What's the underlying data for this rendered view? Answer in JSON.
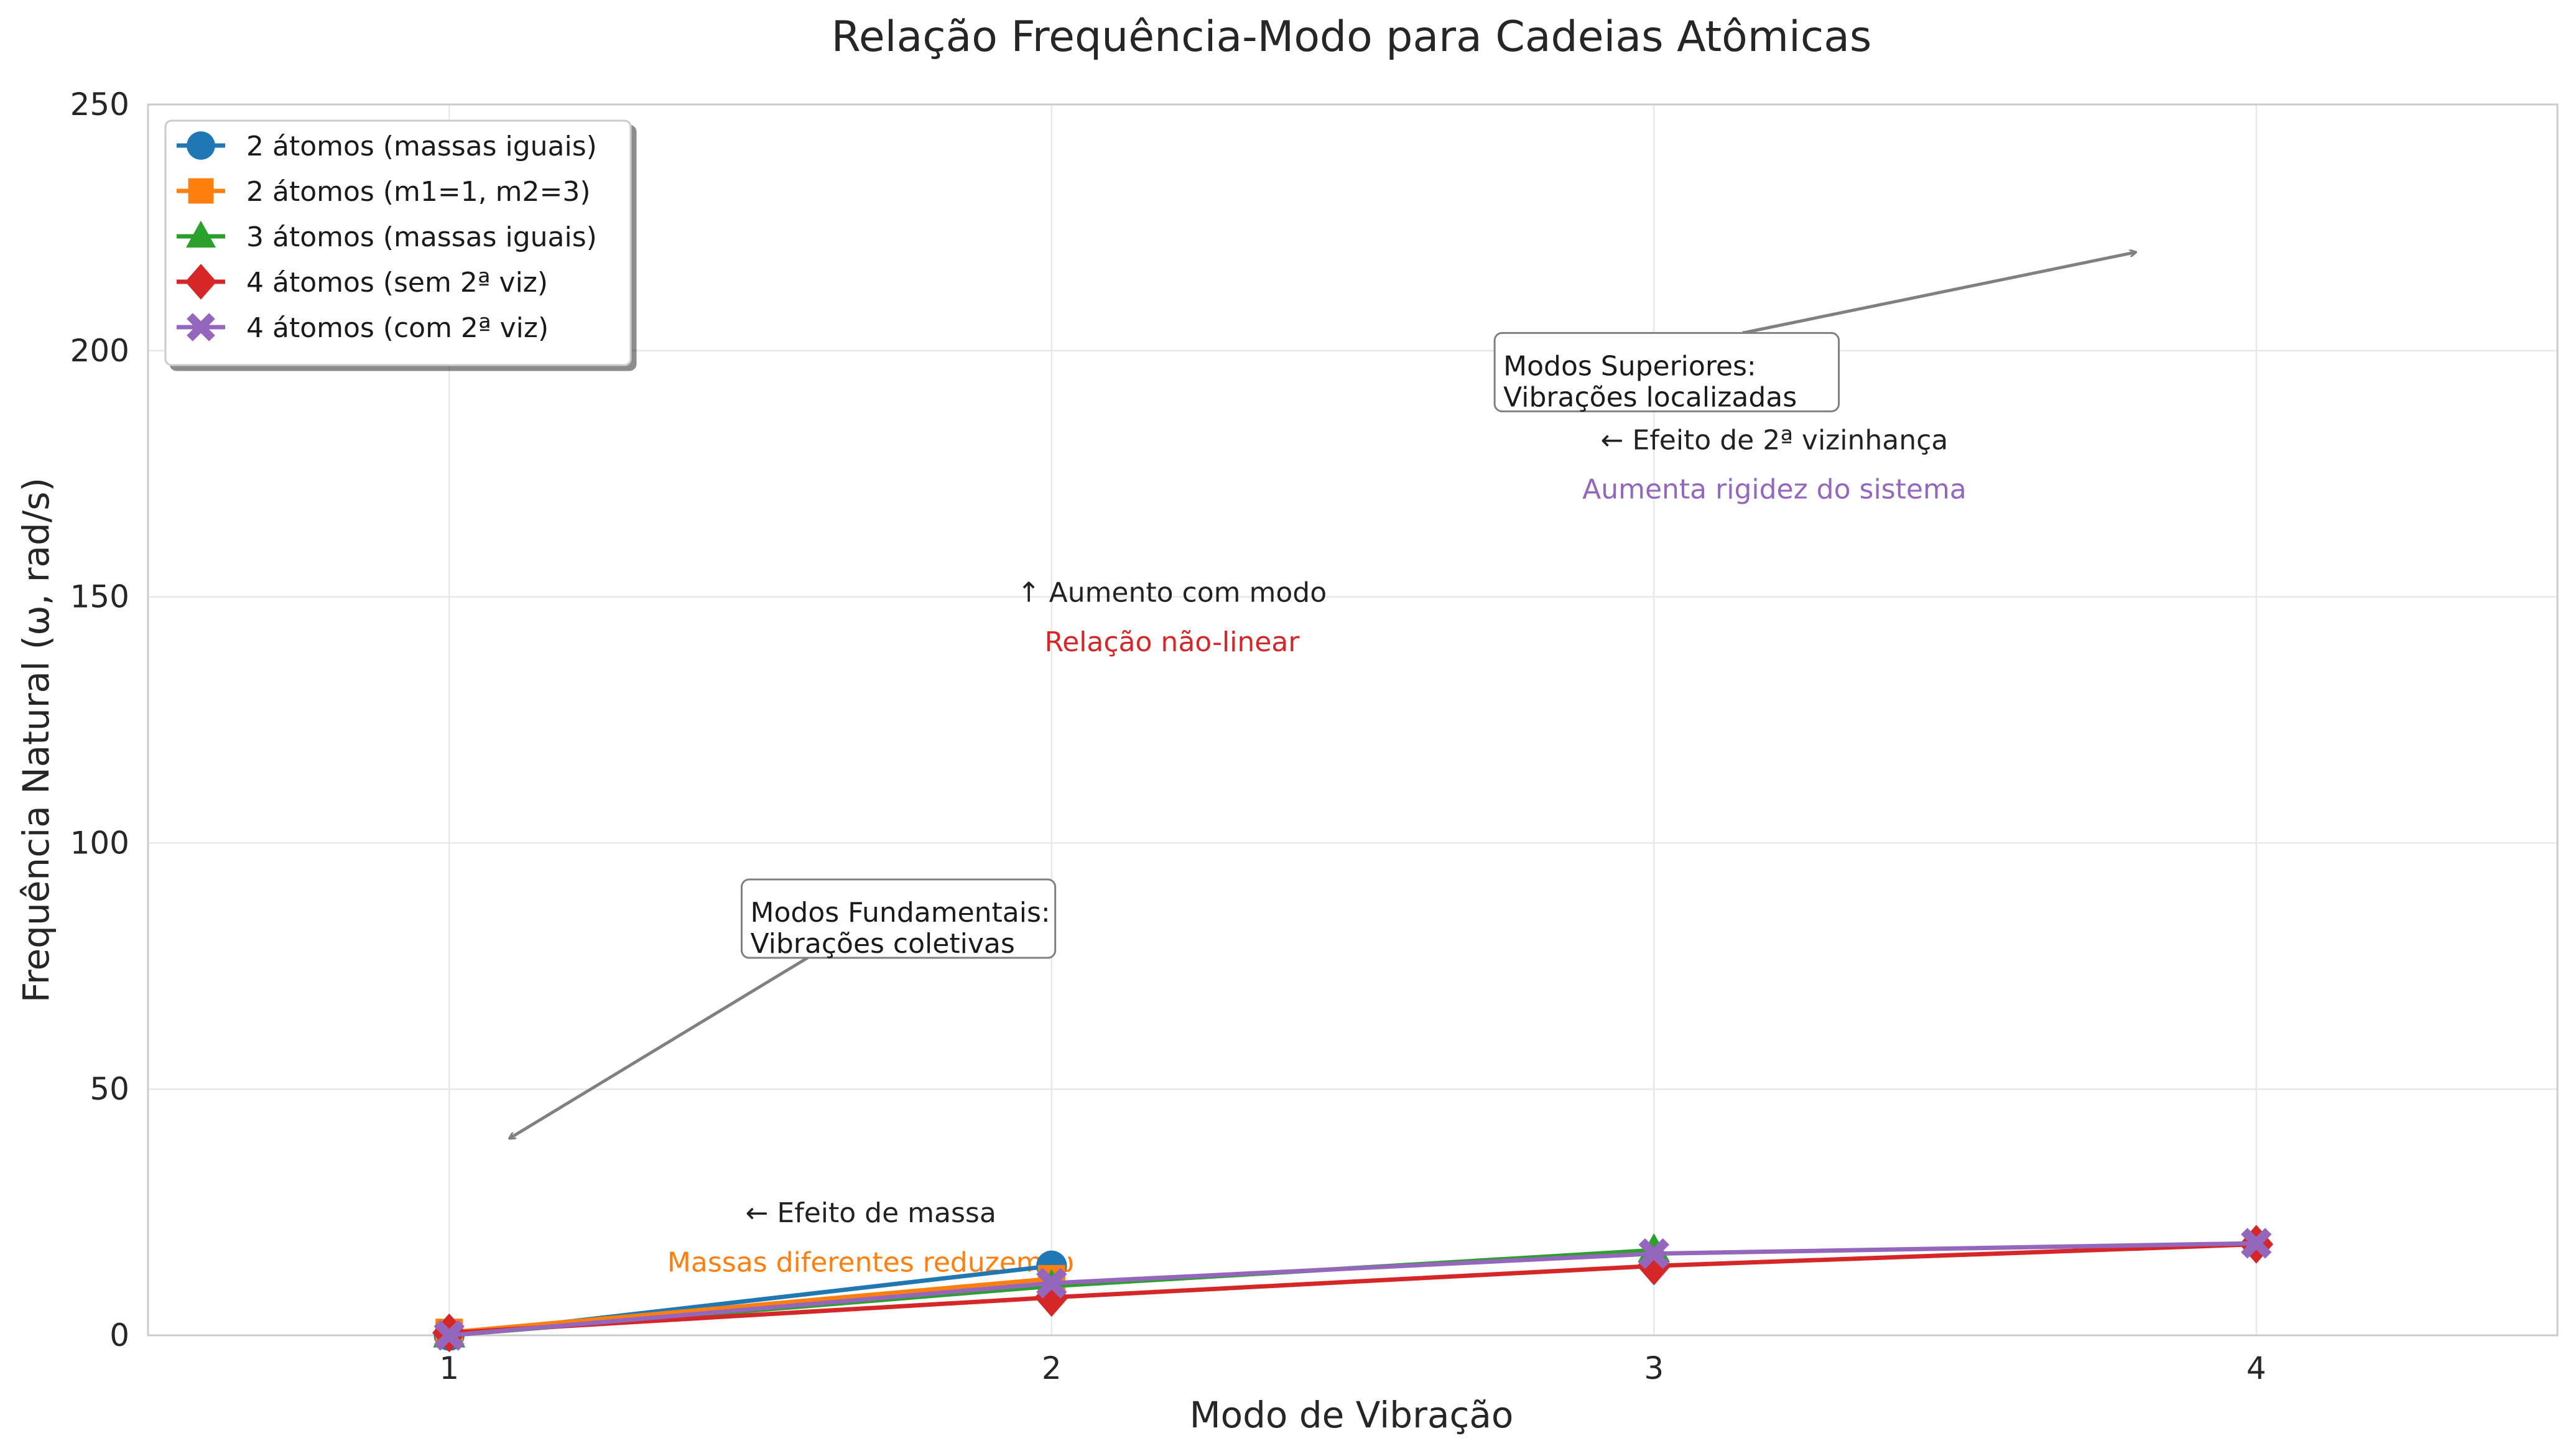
{
  "chart_data": {
    "type": "line",
    "title": "Relação Frequência-Modo para Cadeias Atômicas",
    "xlabel": "Modo de Vibração",
    "ylabel": "Frequência Natural (ω, rad/s)",
    "xlim": [
      0.5,
      4.5
    ],
    "ylim": [
      0,
      250
    ],
    "xticks": [
      1,
      2,
      3,
      4
    ],
    "xtick_labels": [
      "1",
      "2",
      "3",
      "4"
    ],
    "yticks": [
      0,
      50,
      100,
      150,
      200,
      250
    ],
    "ytick_labels": [
      "0",
      "50",
      "100",
      "150",
      "200",
      "250"
    ],
    "grid": true,
    "legend_position": "top-left",
    "series": [
      {
        "name": "2 átomos (massas iguais)",
        "color": "#1f77b4",
        "marker": "circle",
        "x": [
          1,
          2
        ],
        "y": [
          0,
          14.1
        ]
      },
      {
        "name": "2 átomos (m1=1, m2=3)",
        "color": "#ff7f0e",
        "marker": "square",
        "x": [
          1,
          2
        ],
        "y": [
          0.6,
          11.5
        ]
      },
      {
        "name": "3 átomos (massas iguais)",
        "color": "#2ca02c",
        "marker": "triangle",
        "x": [
          1,
          2,
          3
        ],
        "y": [
          0,
          10.0,
          17.3
        ]
      },
      {
        "name": "4 átomos (sem 2ª viz)",
        "color": "#d62728",
        "marker": "diamond",
        "x": [
          1,
          2,
          3,
          4
        ],
        "y": [
          0.5,
          7.7,
          14.1,
          18.5
        ]
      },
      {
        "name": "4 átomos (com 2ª viz)",
        "color": "#9467bd",
        "marker": "x",
        "x": [
          1,
          2,
          3,
          4
        ],
        "y": [
          0,
          10.6,
          16.6,
          18.7
        ]
      }
    ],
    "annotations": [
      {
        "id": "fundamental",
        "line1": "Modos Fundamentais:",
        "line2": "Vibrações coletivas",
        "boxed": true,
        "arrow_to": [
          1.1,
          40
        ],
        "text_at": [
          1.5,
          84
        ]
      },
      {
        "id": "superior",
        "line1": "Modos Superiores:",
        "line2": "Vibrações localizadas",
        "boxed": true,
        "arrow_to": [
          3.8,
          220
        ],
        "text_at": [
          2.75,
          195
        ]
      },
      {
        "id": "aumento",
        "label": "↑  Aumento com modo",
        "color": "#222222",
        "at": [
          2.2,
          151
        ]
      },
      {
        "id": "naolinear",
        "label": "Relação não-linear",
        "color": "#d62728",
        "at": [
          2.2,
          141
        ]
      },
      {
        "id": "massa",
        "label": "←  Efeito de massa",
        "color": "#222222",
        "at": [
          1.7,
          25
        ]
      },
      {
        "id": "massas",
        "label": "Massas diferentes reduzem ω",
        "color": "#ff7f0e",
        "at": [
          1.7,
          15
        ]
      },
      {
        "id": "viz",
        "label": "←  Efeito de 2ª vizinhança",
        "color": "#222222",
        "at": [
          3.2,
          182
        ]
      },
      {
        "id": "rigidez",
        "label": "Aumenta rigidez do sistema",
        "color": "#9467bd",
        "at": [
          3.2,
          172
        ]
      }
    ]
  }
}
